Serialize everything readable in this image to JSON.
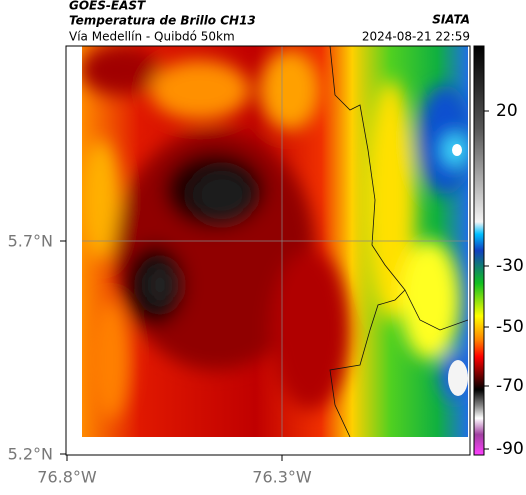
{
  "header": {
    "source": "GOES-EAST",
    "title": "Temperatura de Brillo CH13",
    "subtitle": "Vía Medellín - Quibdó 50km",
    "brand": "SIATA",
    "timestamp": "2024-08-21 22:59"
  },
  "axes": {
    "y_labels": [
      "5.7°N",
      "5.2°N"
    ],
    "x_labels": [
      "76.8°W",
      "76.3°W"
    ]
  },
  "colorbar": {
    "ticks": [
      20,
      -30,
      -50,
      -70,
      -90
    ]
  }
}
